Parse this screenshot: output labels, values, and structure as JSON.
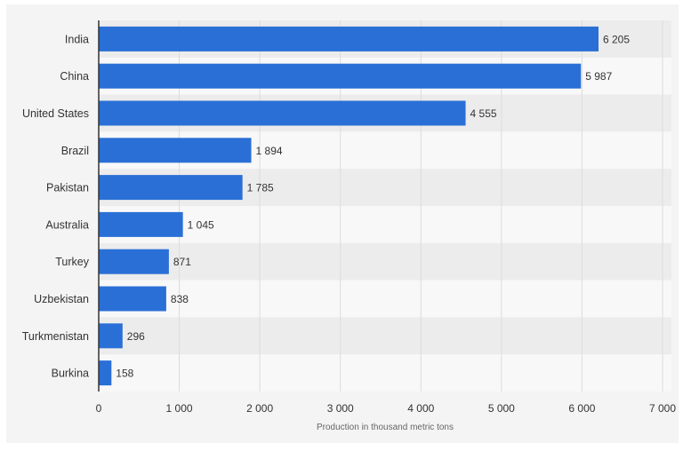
{
  "chart_data": {
    "type": "bar",
    "orientation": "horizontal",
    "categories": [
      "India",
      "China",
      "United States",
      "Brazil",
      "Pakistan",
      "Australia",
      "Turkey",
      "Uzbekistan",
      "Turkmenistan",
      "Burkina"
    ],
    "values": [
      6205,
      5987,
      4555,
      1894,
      1785,
      1045,
      871,
      838,
      296,
      158
    ],
    "value_labels": [
      "6 205",
      "5 987",
      "4 555",
      "1 894",
      "1 785",
      "1 045",
      "871",
      "838",
      "296",
      "158"
    ],
    "x_ticks": [
      0,
      1000,
      2000,
      3000,
      4000,
      5000,
      6000,
      7000
    ],
    "x_tick_labels": [
      "0",
      "1 000",
      "2 000",
      "3 000",
      "4 000",
      "5 000",
      "6 000",
      "7 000"
    ],
    "xlim": [
      0,
      7000
    ],
    "xlabel": "Production in thousand metric tons",
    "ylabel": "",
    "title": "",
    "grid": true,
    "legend": "none",
    "colors": {
      "bar": "#2a6fd6",
      "row_alt": "#ececec",
      "row_base": "#f8f8f8",
      "grid": "#dcdcdc",
      "axis": "#333333"
    }
  }
}
